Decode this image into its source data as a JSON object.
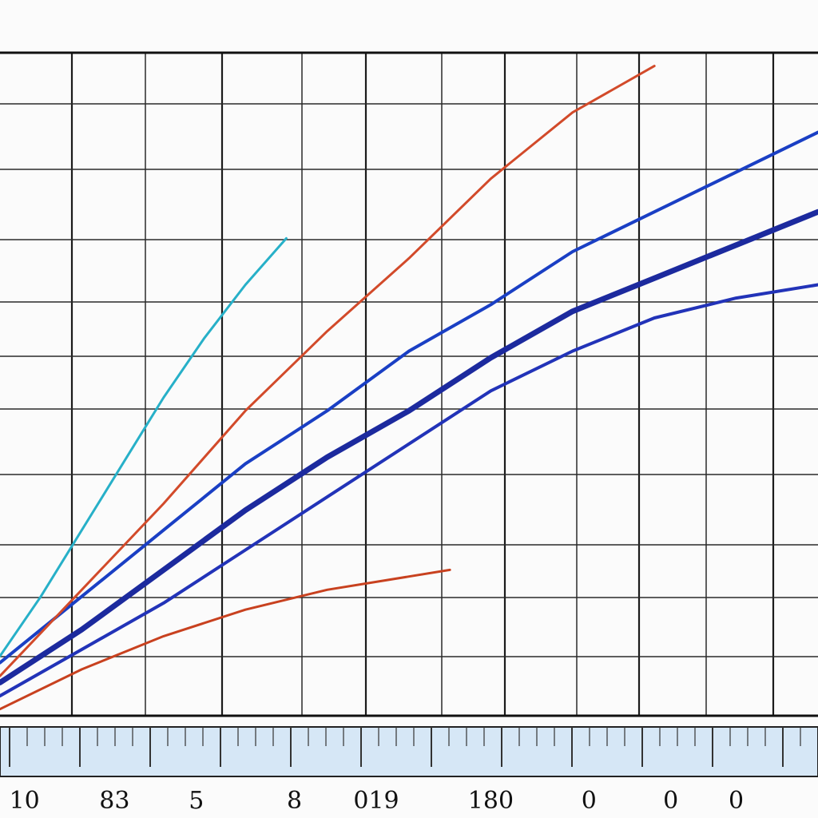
{
  "chart_data": {
    "type": "line",
    "title": "",
    "xlabel": "",
    "ylabel": "",
    "xlim": [
      0,
      100
    ],
    "ylim": [
      0,
      100
    ],
    "grid": true,
    "legend": "none",
    "tick_labels": [
      "10",
      "83",
      "5",
      "8",
      "019",
      "180",
      "0",
      "0",
      "0"
    ],
    "tick_label_positions": [
      3,
      14,
      24,
      36,
      46,
      60,
      72,
      82,
      90
    ],
    "series": [
      {
        "color": "#1a3fc4",
        "x": [
          0,
          10,
          20,
          30,
          40,
          50,
          60,
          70,
          80,
          90,
          100
        ],
        "y": [
          8,
          18,
          28,
          38,
          46,
          55,
          62,
          70,
          76,
          82,
          88
        ]
      },
      {
        "color": "#1c2a9e",
        "x": [
          0,
          10,
          20,
          30,
          40,
          50,
          60,
          70,
          80,
          90,
          100
        ],
        "y": [
          5,
          13,
          22,
          31,
          39,
          46,
          54,
          61,
          66,
          71,
          76
        ]
      },
      {
        "color": "#2233b8",
        "x": [
          0,
          10,
          20,
          30,
          40,
          50,
          60,
          70,
          80,
          90,
          100
        ],
        "y": [
          3,
          10,
          17,
          25,
          33,
          41,
          49,
          55,
          60,
          63,
          65
        ]
      },
      {
        "color": "#d24a2a",
        "x": [
          0,
          10,
          20,
          30,
          40,
          50,
          60,
          70,
          80
        ],
        "y": [
          6,
          19,
          32,
          46,
          58,
          69,
          81,
          91,
          98
        ]
      },
      {
        "color": "#27b0c8",
        "x": [
          0,
          5,
          10,
          15,
          20,
          25,
          30,
          35
        ],
        "y": [
          9,
          18,
          28,
          38,
          48,
          57,
          65,
          72
        ]
      },
      {
        "color": "#c8411f",
        "x": [
          0,
          10,
          20,
          30,
          40,
          50,
          55
        ],
        "y": [
          1,
          7,
          12,
          16,
          19,
          21,
          22
        ]
      }
    ]
  }
}
